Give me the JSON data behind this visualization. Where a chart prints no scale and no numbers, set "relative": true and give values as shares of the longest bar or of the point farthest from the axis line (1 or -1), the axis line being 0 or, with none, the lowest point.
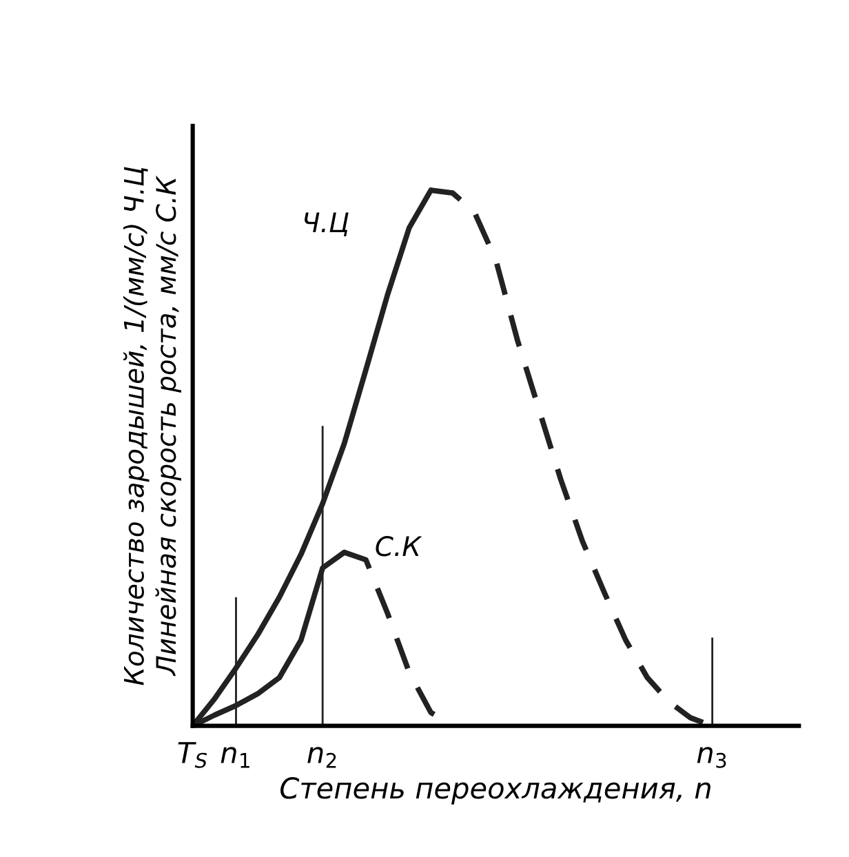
{
  "chart_data": {
    "type": "line",
    "relative": true,
    "xlabel": "Степень переохлаждения, n",
    "ylabel": "Количество зародышей, 1/(мм/с) Ч.Ц\nЛинейная скорость роста, мм/с С.К",
    "categories": [
      "T$_{S}$",
      null,
      "n$_{1}$",
      null,
      null,
      null,
      "n$_{2}$",
      null,
      null,
      null,
      null,
      null,
      null,
      null,
      null,
      null,
      null,
      null,
      null,
      null,
      null,
      null,
      null,
      null,
      "n$_{3}$",
      null,
      null,
      null,
      null
    ],
    "grid": false,
    "legend": false,
    "marker": "none",
    "series": [
      {
        "name": "Ч.Ц",
        "color": "#222222",
        "line_style": "solid",
        "values": [
          0,
          0.05,
          0.108,
          0.17,
          0.24,
          0.32,
          0.415,
          0.527,
          0.665,
          0.805,
          0.93,
          1,
          null,
          null,
          null,
          null,
          null,
          null,
          null,
          null,
          null,
          null,
          null,
          null,
          null,
          null,
          null,
          null,
          null
        ]
      },
      {
        "color": "#222222",
        "line_style": "dashed",
        "values": [
          null,
          null,
          null,
          null,
          null,
          null,
          null,
          null,
          null,
          null,
          null,
          1,
          0.995,
          0.96,
          0.87,
          0.72,
          0.59,
          0.46,
          0.345,
          0.25,
          0.16,
          0.09,
          0.045,
          0.015,
          0,
          null,
          null,
          null,
          null
        ]
      },
      {
        "name": "С.К",
        "color": "#222222",
        "line_style": "solid",
        "values": [
          0,
          0.02,
          0.038,
          0.06,
          0.09,
          0.16,
          0.295,
          0.324,
          null,
          null,
          null,
          null,
          null,
          null,
          null,
          null,
          null,
          null,
          null,
          null,
          null,
          null,
          null,
          null,
          null,
          null,
          null,
          null,
          null
        ]
      },
      {
        "color": "#222222",
        "line_style": "dashed",
        "values": [
          null,
          null,
          null,
          null,
          null,
          null,
          null,
          0.324,
          0.31,
          0.21,
          0.1,
          0.025,
          0,
          null,
          null,
          null,
          null,
          null,
          null,
          null,
          null,
          null,
          null,
          null,
          null,
          null,
          null,
          null,
          null
        ]
      },
      {
        "type": "bar",
        "color": "#222222",
        "values": [
          null,
          null,
          0.24,
          null,
          null,
          null,
          0.56,
          null,
          null,
          null,
          null,
          null,
          null,
          null,
          null,
          null,
          null,
          null,
          null,
          null,
          null,
          null,
          null,
          null,
          0.165,
          null,
          null,
          null,
          null
        ]
      }
    ]
  }
}
